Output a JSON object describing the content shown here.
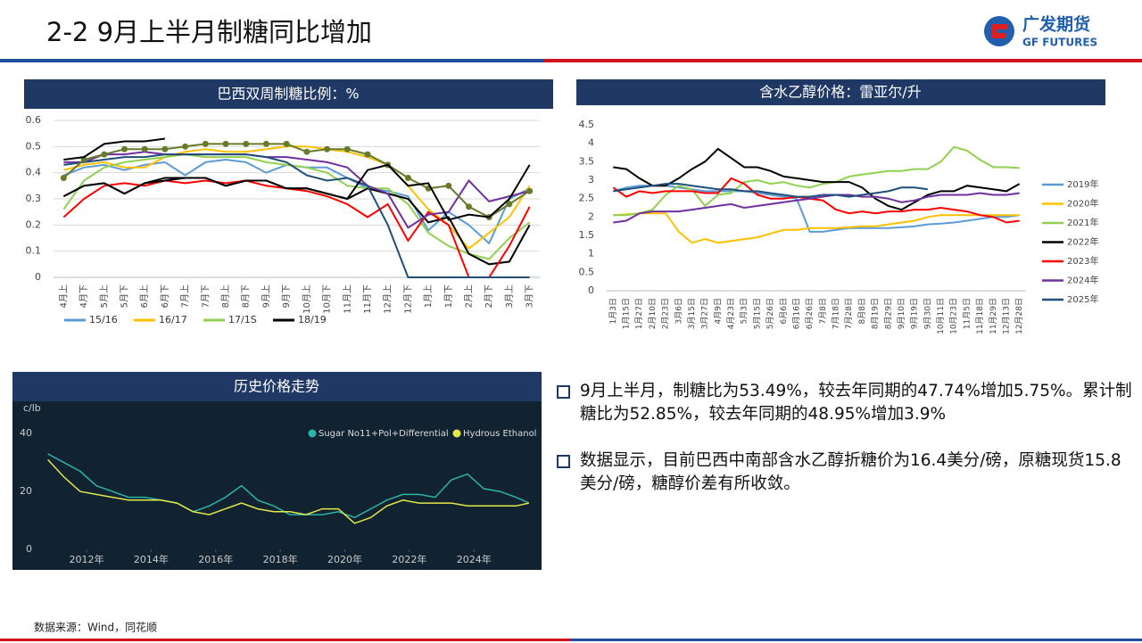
{
  "header": {
    "title": "2-2 9月上半月制糖同比增加",
    "logo_cn": "广发期货",
    "logo_en": "GF FUTURES"
  },
  "charts": [
    {
      "type": "line",
      "title": "巴西双周制糖比例：%",
      "grid": true,
      "legend": "bottom",
      "categories": [
        "4月上",
        "4月下",
        "5月上",
        "5月下",
        "6月上",
        "6月下",
        "7月上",
        "7月下",
        "8月上",
        "8月下",
        "9月上",
        "9月下",
        "10月上",
        "10月下",
        "11月上",
        "11月下",
        "12月上",
        "12月下",
        "1月上",
        "1月下",
        "2月上",
        "2月下",
        "3月上",
        "3月下"
      ],
      "ylim": [
        0,
        0.6
      ],
      "yticks": [
        0,
        0.1,
        0.2,
        0.3,
        0.4,
        0.5,
        0.6
      ],
      "series": [
        {
          "name": "15/16",
          "color": "#5b9bd5",
          "values": [
            0.39,
            0.42,
            0.43,
            0.41,
            0.43,
            0.44,
            0.39,
            0.44,
            0.45,
            0.44,
            0.4,
            0.43,
            0.42,
            0.42,
            0.38,
            0.34,
            0.33,
            0.31,
            0.18,
            0.25,
            0.2,
            0.13,
            0.3,
            0.34
          ]
        },
        {
          "name": "16/17",
          "color": "#ffc000",
          "values": [
            0.41,
            0.43,
            0.44,
            0.42,
            0.42,
            0.46,
            0.48,
            0.49,
            0.48,
            0.48,
            0.49,
            0.5,
            0.5,
            0.49,
            0.48,
            0.46,
            0.43,
            0.35,
            0.26,
            0.2,
            0.11,
            0.17,
            0.23,
            0.35
          ]
        },
        {
          "name": "17/1S",
          "color": "#92d050",
          "values": [
            0.26,
            0.37,
            0.42,
            0.44,
            0.45,
            0.46,
            0.47,
            0.46,
            0.46,
            0.46,
            0.44,
            0.43,
            0.42,
            0.4,
            0.35,
            0.34,
            0.34,
            0.28,
            0.17,
            0.12,
            0.09,
            0.07,
            0.15,
            0.21
          ]
        },
        {
          "name": "18/19",
          "color": "#000000",
          "values": [
            0.31,
            0.35,
            0.36,
            0.32,
            0.36,
            0.38,
            0.38,
            0.38,
            0.35,
            0.37,
            0.37,
            0.34,
            0.34,
            0.32,
            0.3,
            0.34,
            0.32,
            0.3,
            0.21,
            0.23,
            0.09,
            0.05,
            0.06,
            0.2
          ]
        },
        {
          "color": "#ff0000",
          "values": [
            0.23,
            0.3,
            0.35,
            0.36,
            0.35,
            0.37,
            0.36,
            0.37,
            0.36,
            0.37,
            0.35,
            0.34,
            0.33,
            0.31,
            0.28,
            0.23,
            0.28,
            0.14,
            0.25,
            0.2,
            0,
            0,
            0.12,
            0.27
          ]
        },
        {
          "color": "#7030a0",
          "values": [
            0.44,
            0.44,
            0.47,
            0.47,
            0.48,
            0.47,
            0.47,
            0.47,
            0.47,
            0.47,
            0.46,
            0.46,
            0.45,
            0.44,
            0.42,
            0.35,
            0.32,
            0.19,
            0.24,
            0.25,
            0.37,
            0.29,
            0.31,
            0.33
          ]
        },
        {
          "color": "#1f4e79",
          "values": [
            0.43,
            0.44,
            0.45,
            0.46,
            0.46,
            0.47,
            0.47,
            0.47,
            0.47,
            0.47,
            0.46,
            0.44,
            0.39,
            0.37,
            0.38,
            0.35,
            0.2,
            0,
            0,
            0,
            0,
            0,
            0,
            0
          ]
        },
        {
          "color": "#677a2a",
          "marker": "circle",
          "values": [
            0.38,
            0.45,
            0.47,
            0.49,
            0.49,
            0.49,
            0.5,
            0.51,
            0.51,
            0.51,
            0.51,
            0.51,
            0.48,
            0.49,
            0.49,
            0.47,
            0.43,
            0.38,
            0.34,
            0.35,
            0.27,
            0.23,
            0.28,
            0.33
          ]
        },
        {
          "color": "#000000",
          "values": [
            0.31,
            0.35,
            0.36,
            0.32,
            0.36,
            0.37,
            0.38,
            0.38,
            0.35,
            0.37,
            0.37,
            0.34,
            0.34,
            0.32,
            0.3,
            0.41,
            0.43,
            0.35,
            0.36,
            0.22,
            0.24,
            0.23,
            0.3,
            0.43
          ]
        },
        {
          "color": "#000000",
          "values": [
            0.45,
            0.46,
            0.51,
            0.52,
            0.52,
            0.53,
            null,
            null,
            null,
            null,
            null,
            null,
            null,
            null,
            null,
            null,
            null,
            null,
            null,
            null,
            null,
            null,
            null,
            null
          ]
        }
      ]
    },
    {
      "type": "line",
      "title": "含水乙醇价格：雷亚尔/升",
      "grid": false,
      "legend": "right",
      "categories": [
        "1月3日",
        "1月15日",
        "1月27日",
        "2月10日",
        "2月23日",
        "3月6日",
        "3月15日",
        "3月27日",
        "4月9日",
        "4月23日",
        "5月3日",
        "5月15日",
        "5月26日",
        "6月6日",
        "6月16日",
        "6月26日",
        "7月8日",
        "7月18日",
        "7月28日",
        "8月8日",
        "8月19日",
        "8月29日",
        "9月10日",
        "9月19日",
        "9月30日",
        "10月11日",
        "10月23日",
        "11月5日",
        "11月18日",
        "11月29日",
        "12月13日",
        "12月28日"
      ],
      "ylim": [
        0,
        4.5
      ],
      "yticks": [
        0,
        0.5,
        1,
        1.5,
        2,
        2.5,
        3,
        3.5,
        4,
        4.5
      ],
      "series": [
        {
          "name": "2019年",
          "color": "#5b9bd5",
          "values": [
            2.7,
            2.8,
            2.85,
            2.85,
            2.85,
            2.8,
            2.75,
            2.7,
            2.7,
            2.7,
            2.7,
            2.65,
            2.6,
            2.55,
            2.5,
            1.6,
            1.6,
            1.65,
            1.7,
            1.7,
            1.7,
            1.7,
            1.72,
            1.75,
            1.8,
            1.82,
            1.85,
            1.9,
            1.95,
            2.0,
            2.0,
            2.05
          ]
        },
        {
          "name": "2020年",
          "color": "#ffc000",
          "values": [
            2.05,
            2.07,
            2.1,
            2.1,
            2.1,
            1.6,
            1.3,
            1.4,
            1.3,
            1.35,
            1.4,
            1.45,
            1.55,
            1.65,
            1.65,
            1.7,
            1.7,
            1.7,
            1.72,
            1.75,
            1.75,
            1.8,
            1.85,
            1.9,
            2.0,
            2.05,
            2.05,
            2.05,
            2.05,
            2.05,
            2.05,
            2.05
          ]
        },
        {
          "name": "2021年",
          "color": "#92d050",
          "values": [
            2.05,
            2.05,
            2.1,
            2.2,
            2.6,
            2.85,
            2.75,
            2.3,
            2.6,
            2.65,
            2.95,
            3.0,
            2.9,
            2.95,
            2.85,
            2.8,
            2.9,
            2.95,
            3.1,
            3.15,
            3.2,
            3.25,
            3.25,
            3.3,
            3.3,
            3.5,
            3.9,
            3.8,
            3.55,
            3.35,
            3.35,
            3.33
          ]
        },
        {
          "name": "2022年",
          "color": "#000000",
          "values": [
            3.35,
            3.3,
            3.05,
            2.85,
            2.85,
            3.05,
            3.3,
            3.5,
            3.85,
            3.6,
            3.35,
            3.35,
            3.25,
            3.1,
            3.05,
            3.0,
            2.95,
            2.95,
            2.95,
            2.8,
            2.5,
            2.3,
            2.2,
            2.4,
            2.6,
            2.7,
            2.7,
            2.85,
            2.8,
            2.75,
            2.7,
            2.9
          ]
        },
        {
          "name": "2023年",
          "color": "#ff0000",
          "values": [
            2.8,
            2.55,
            2.7,
            2.65,
            2.7,
            2.7,
            2.7,
            2.65,
            2.65,
            3.05,
            2.9,
            2.6,
            2.5,
            2.5,
            2.55,
            2.5,
            2.45,
            2.2,
            2.1,
            2.15,
            2.1,
            2.15,
            2.15,
            2.2,
            2.2,
            2.25,
            2.2,
            2.15,
            2.05,
            2.0,
            1.85,
            1.9
          ]
        },
        {
          "name": "2024年",
          "color": "#7030a0",
          "values": [
            1.85,
            1.9,
            2.1,
            2.15,
            2.15,
            2.15,
            2.2,
            2.25,
            2.3,
            2.35,
            2.25,
            2.3,
            2.35,
            2.4,
            2.45,
            2.5,
            2.55,
            2.6,
            2.6,
            2.55,
            2.55,
            2.5,
            2.4,
            2.45,
            2.55,
            2.6,
            2.6,
            2.6,
            2.65,
            2.6,
            2.6,
            2.65
          ]
        },
        {
          "name": "2025年",
          "color": "#1f4e79",
          "values": [
            2.7,
            2.75,
            2.8,
            2.85,
            2.9,
            2.9,
            2.85,
            2.8,
            2.75,
            2.75,
            2.7,
            2.7,
            2.65,
            2.6,
            2.55,
            2.55,
            2.6,
            2.6,
            2.55,
            2.6,
            2.65,
            2.7,
            2.8,
            2.8,
            2.75,
            null,
            null,
            null,
            null,
            null,
            null,
            null
          ]
        }
      ]
    },
    {
      "type": "line",
      "title": "历史价格走势",
      "ylabel": "c/lb",
      "grid": false,
      "legend": "top-right",
      "xlim": [
        2010.7,
        2025.9
      ],
      "xticks": [
        {
          "value": 2012,
          "label": "2012年"
        },
        {
          "value": 2014,
          "label": "2014年"
        },
        {
          "value": 2016,
          "label": "2016年"
        },
        {
          "value": 2018,
          "label": "2018年"
        },
        {
          "value": 2020,
          "label": "2020年"
        },
        {
          "value": 2022,
          "label": "2022年"
        },
        {
          "value": 2024,
          "label": "2024年"
        }
      ],
      "ylim": [
        0,
        45
      ],
      "yticks": [
        0,
        20,
        40
      ],
      "x": [
        2010.8,
        2011.3,
        2011.8,
        2012.3,
        2012.8,
        2013.3,
        2013.8,
        2014.3,
        2014.8,
        2015.3,
        2015.8,
        2016.3,
        2016.8,
        2017.3,
        2017.8,
        2018.3,
        2018.8,
        2019.3,
        2019.8,
        2020.3,
        2020.8,
        2021.3,
        2021.8,
        2022.3,
        2022.8,
        2023.3,
        2023.8,
        2024.3,
        2024.8,
        2025.3,
        2025.7
      ],
      "series": [
        {
          "name": "Sugar No11+Pol+Differential",
          "color": "#2bb5a8",
          "values": [
            33,
            30,
            27,
            22,
            20,
            18,
            18,
            17,
            16,
            13,
            15,
            18,
            22,
            17,
            15,
            12,
            12,
            12,
            13,
            11,
            14,
            17,
            19,
            19,
            18,
            24,
            26,
            21,
            20,
            18,
            16
          ]
        },
        {
          "name": "Hydrous Ethanol",
          "color": "#e3e84a",
          "values": [
            31,
            25,
            20,
            19,
            18,
            17,
            17,
            17,
            16,
            13,
            12,
            14,
            16,
            14,
            13,
            13,
            12,
            14,
            14,
            9,
            11,
            15,
            17,
            16,
            16,
            16,
            15,
            15,
            15,
            15,
            16
          ]
        }
      ]
    }
  ],
  "bullets": [
    "9月上半月，制糖比为53.49%，较去年同期的47.74%增加5.75%。累计制糖比为52.85%，较去年同期的48.95%增加3.9%",
    "数据显示，目前巴西中南部含水乙醇折糖价为16.4美分/磅，原糖现货15.8美分/磅，糖醇价差有所收敛。"
  ],
  "source": "数据来源：Wind，同花顺"
}
